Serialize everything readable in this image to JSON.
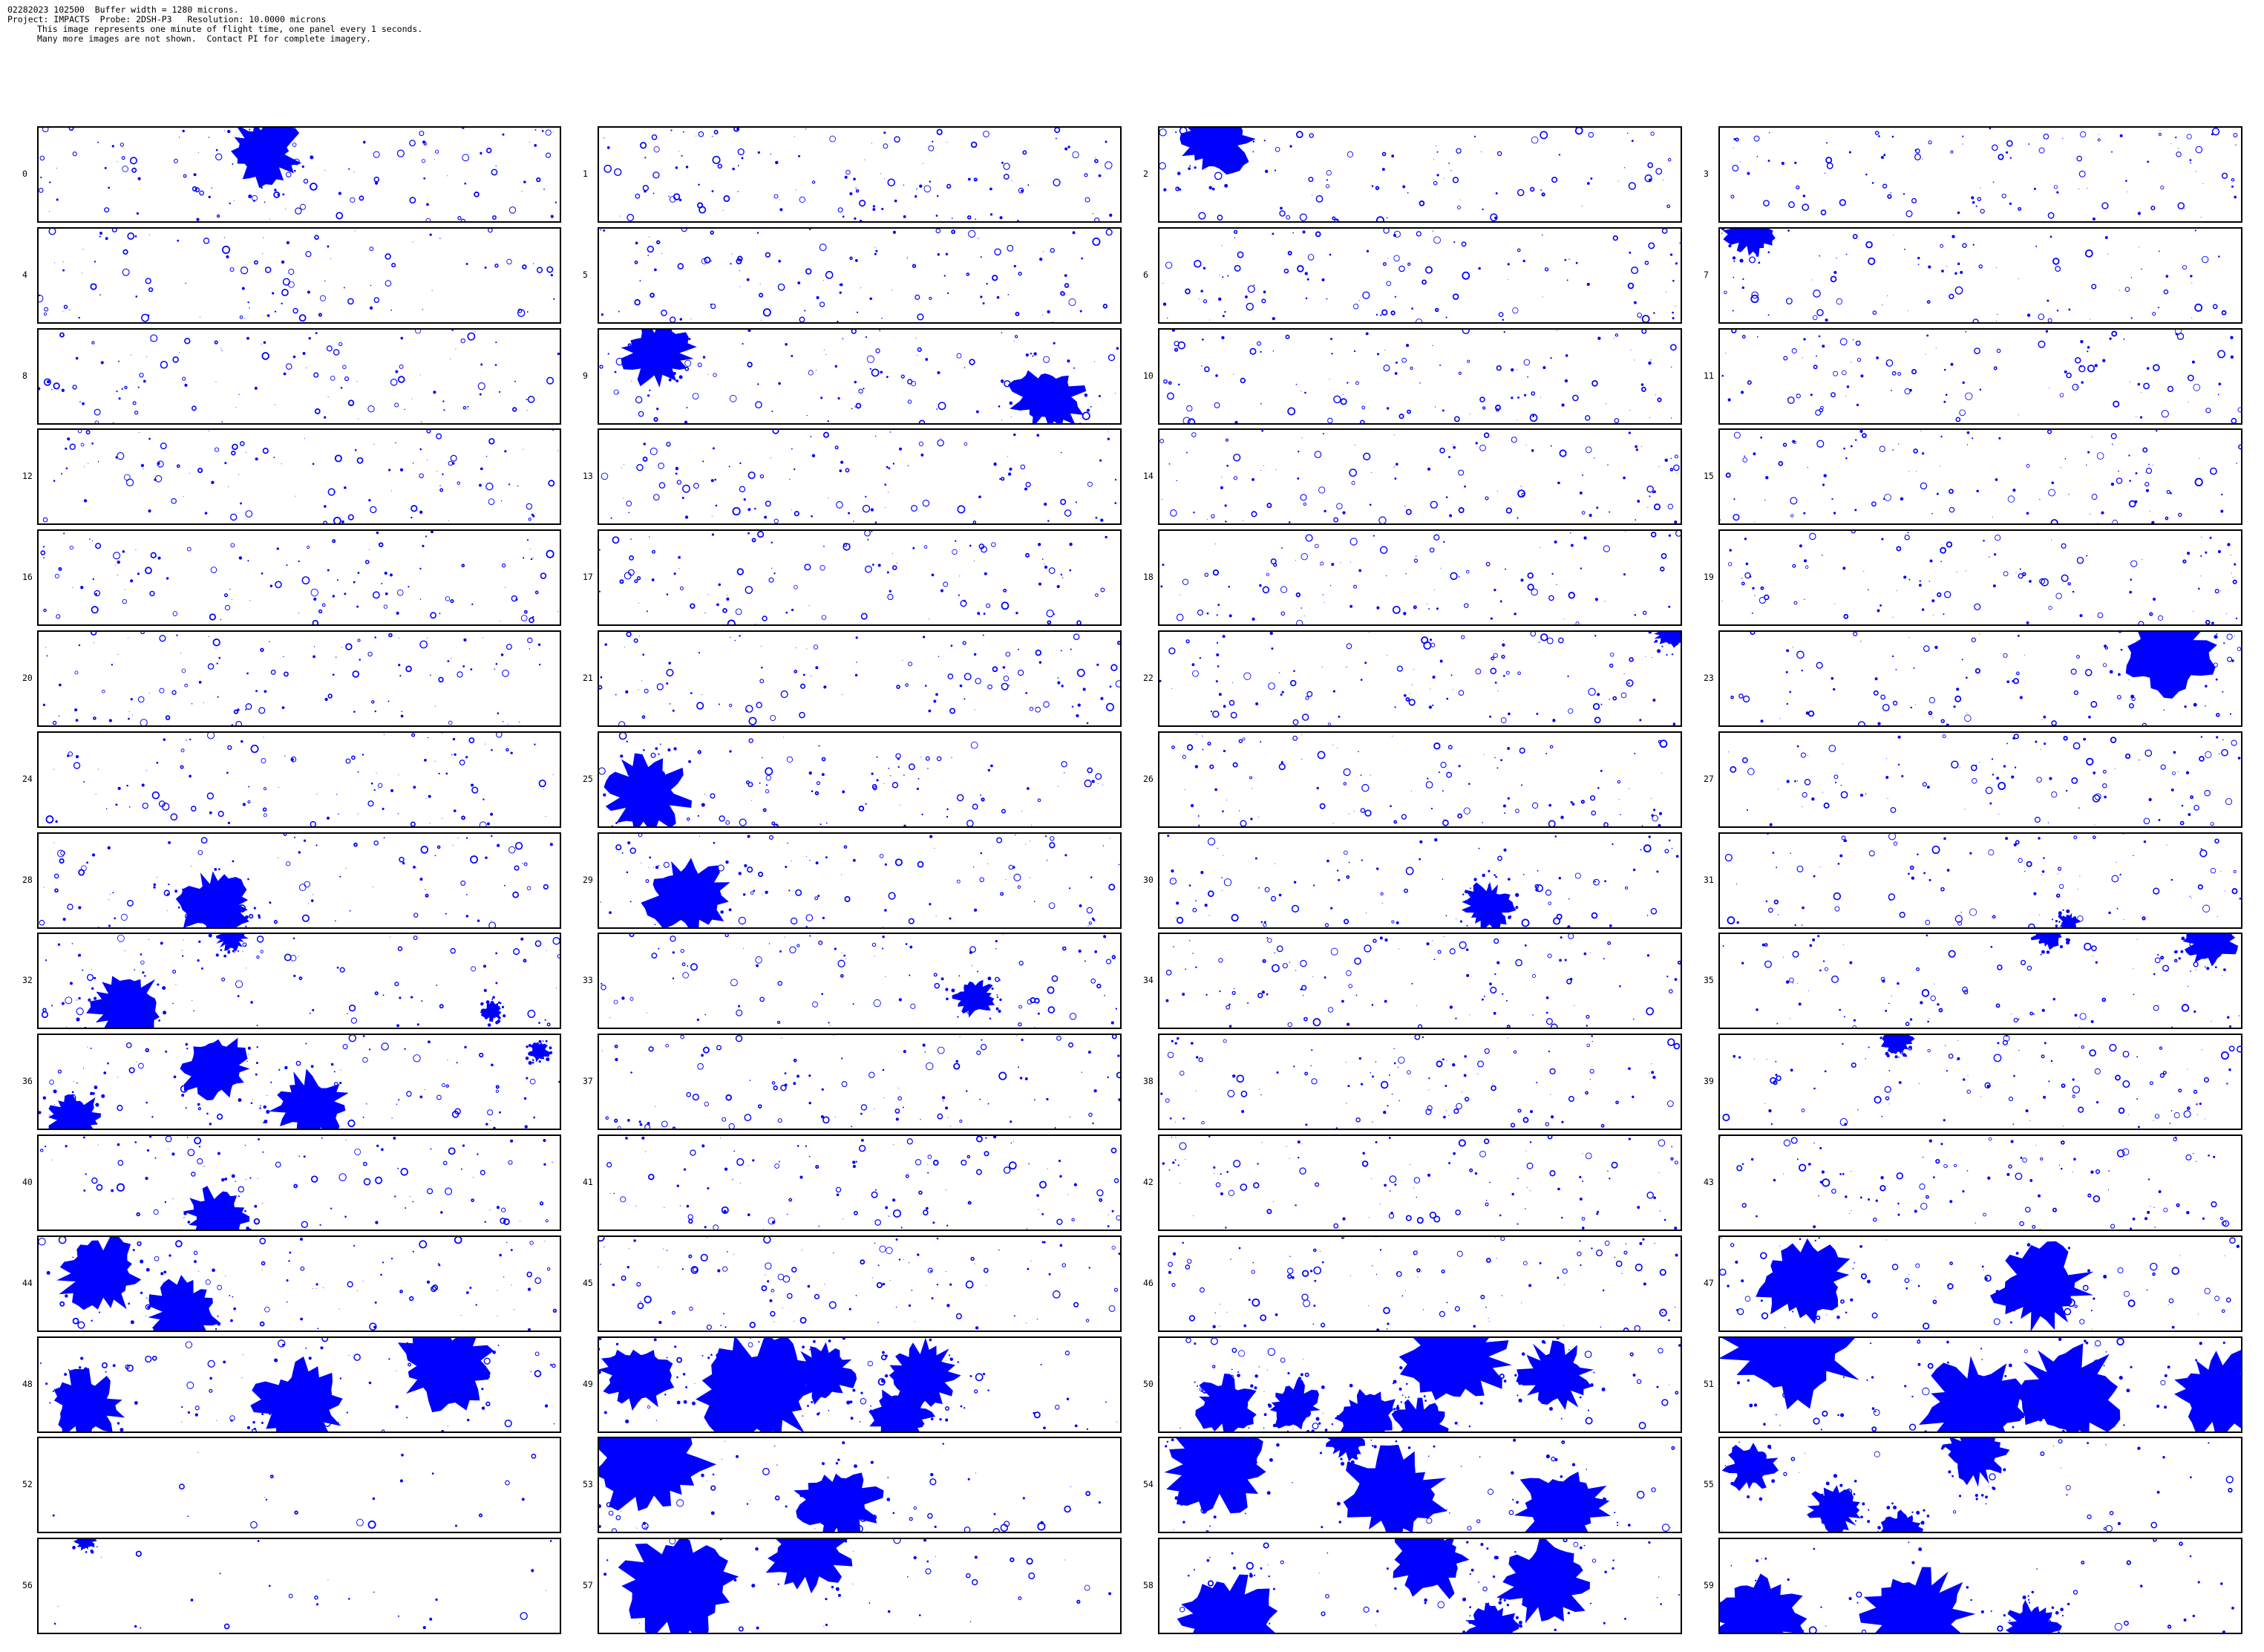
{
  "header": {
    "line1": "02282023 102500  Buffer width = 1280 microns.",
    "line2": "Project: IMPACTS  Probe: 2DSH-P3   Resolution: 10.0000 microns",
    "line3": "This image represents one minute of flight time, one panel every 1 seconds.",
    "line4": "Many more images are not shown.  Contact PI for complete imagery."
  },
  "colors": {
    "particle": "#0000ff",
    "border": "#000000",
    "background": "#ffffff"
  },
  "panels": [
    {
      "label": "0",
      "small": 110,
      "blobs": [
        [
          0.43,
          0.25,
          0.07
        ]
      ]
    },
    {
      "label": "1",
      "small": 130,
      "blobs": []
    },
    {
      "label": "2",
      "small": 90,
      "blobs": [
        [
          0.11,
          0.12,
          0.07
        ]
      ]
    },
    {
      "label": "3",
      "small": 110,
      "blobs": []
    },
    {
      "label": "4",
      "small": 100,
      "blobs": []
    },
    {
      "label": "5",
      "small": 110,
      "blobs": []
    },
    {
      "label": "6",
      "small": 110,
      "blobs": []
    },
    {
      "label": "7",
      "small": 90,
      "blobs": [
        [
          0.06,
          0.02,
          0.05
        ]
      ]
    },
    {
      "label": "8",
      "small": 110,
      "blobs": []
    },
    {
      "label": "9",
      "small": 100,
      "blobs": [
        [
          0.11,
          0.25,
          0.07
        ],
        [
          0.86,
          0.72,
          0.07
        ]
      ]
    },
    {
      "label": "10",
      "small": 110,
      "blobs": []
    },
    {
      "label": "11",
      "small": 110,
      "blobs": []
    },
    {
      "label": "12",
      "small": 110,
      "blobs": []
    },
    {
      "label": "13",
      "small": 110,
      "blobs": []
    },
    {
      "label": "14",
      "small": 110,
      "blobs": []
    },
    {
      "label": "15",
      "small": 110,
      "blobs": []
    },
    {
      "label": "16",
      "small": 110,
      "blobs": []
    },
    {
      "label": "17",
      "small": 110,
      "blobs": []
    },
    {
      "label": "18",
      "small": 100,
      "blobs": []
    },
    {
      "label": "19",
      "small": 110,
      "blobs": []
    },
    {
      "label": "20",
      "small": 110,
      "blobs": []
    },
    {
      "label": "21",
      "small": 110,
      "blobs": []
    },
    {
      "label": "22",
      "small": 110,
      "blobs": [
        [
          0.98,
          0.02,
          0.03
        ]
      ]
    },
    {
      "label": "23",
      "small": 100,
      "blobs": [
        [
          0.86,
          0.22,
          0.09
        ]
      ]
    },
    {
      "label": "24",
      "small": 110,
      "blobs": []
    },
    {
      "label": "25",
      "small": 100,
      "blobs": [
        [
          0.09,
          0.65,
          0.08
        ]
      ]
    },
    {
      "label": "26",
      "small": 110,
      "blobs": []
    },
    {
      "label": "27",
      "small": 110,
      "blobs": []
    },
    {
      "label": "28",
      "small": 100,
      "blobs": [
        [
          0.34,
          0.76,
          0.07
        ]
      ]
    },
    {
      "label": "29",
      "small": 100,
      "blobs": [
        [
          0.17,
          0.66,
          0.08
        ]
      ]
    },
    {
      "label": "30",
      "small": 100,
      "blobs": [
        [
          0.63,
          0.77,
          0.05
        ]
      ]
    },
    {
      "label": "31",
      "small": 100,
      "blobs": [
        [
          0.67,
          0.96,
          0.02
        ]
      ]
    },
    {
      "label": "32",
      "small": 100,
      "blobs": [
        [
          0.17,
          0.78,
          0.07
        ],
        [
          0.37,
          0.02,
          0.03
        ],
        [
          0.87,
          0.83,
          0.02
        ]
      ]
    },
    {
      "label": "33",
      "small": 100,
      "blobs": [
        [
          0.72,
          0.69,
          0.04
        ]
      ]
    },
    {
      "label": "34",
      "small": 110,
      "blobs": []
    },
    {
      "label": "35",
      "small": 100,
      "blobs": [
        [
          0.94,
          0.08,
          0.05
        ],
        [
          0.63,
          0.01,
          0.03
        ]
      ]
    },
    {
      "label": "36",
      "small": 90,
      "blobs": [
        [
          0.34,
          0.36,
          0.07
        ],
        [
          0.52,
          0.75,
          0.07
        ],
        [
          0.07,
          0.88,
          0.05
        ],
        [
          0.96,
          0.18,
          0.02
        ]
      ]
    },
    {
      "label": "37",
      "small": 110,
      "blobs": []
    },
    {
      "label": "38",
      "small": 110,
      "blobs": []
    },
    {
      "label": "39",
      "small": 110,
      "blobs": [
        [
          0.34,
          0.07,
          0.03
        ]
      ]
    },
    {
      "label": "40",
      "small": 100,
      "blobs": [
        [
          0.34,
          0.86,
          0.06
        ]
      ]
    },
    {
      "label": "41",
      "small": 110,
      "blobs": []
    },
    {
      "label": "42",
      "small": 110,
      "blobs": []
    },
    {
      "label": "43",
      "small": 110,
      "blobs": []
    },
    {
      "label": "44",
      "small": 90,
      "blobs": [
        [
          0.12,
          0.39,
          0.08
        ],
        [
          0.28,
          0.8,
          0.07
        ]
      ]
    },
    {
      "label": "45",
      "small": 110,
      "blobs": []
    },
    {
      "label": "46",
      "small": 110,
      "blobs": []
    },
    {
      "label": "47",
      "small": 90,
      "blobs": [
        [
          0.16,
          0.48,
          0.09
        ],
        [
          0.62,
          0.54,
          0.09
        ]
      ]
    },
    {
      "label": "48",
      "small": 60,
      "blobs": [
        [
          0.09,
          0.72,
          0.07
        ],
        [
          0.5,
          0.72,
          0.09
        ],
        [
          0.78,
          0.3,
          0.09
        ]
      ]
    },
    {
      "label": "49",
      "small": 60,
      "blobs": [
        [
          0.07,
          0.4,
          0.07
        ],
        [
          0.31,
          0.55,
          0.11
        ],
        [
          0.43,
          0.38,
          0.06
        ],
        [
          0.62,
          0.4,
          0.07
        ],
        [
          0.58,
          0.84,
          0.06
        ]
      ]
    },
    {
      "label": "50",
      "small": 60,
      "blobs": [
        [
          0.57,
          0.2,
          0.1
        ],
        [
          0.76,
          0.4,
          0.07
        ],
        [
          0.13,
          0.72,
          0.06
        ],
        [
          0.26,
          0.73,
          0.05
        ],
        [
          0.4,
          0.86,
          0.06
        ],
        [
          0.5,
          0.92,
          0.05
        ]
      ]
    },
    {
      "label": "51",
      "small": 60,
      "blobs": [
        [
          0.14,
          0.1,
          0.13
        ],
        [
          0.49,
          0.74,
          0.1
        ],
        [
          0.67,
          0.6,
          0.1
        ],
        [
          0.96,
          0.6,
          0.09
        ]
      ]
    },
    {
      "label": "52",
      "small": 20,
      "blobs": []
    },
    {
      "label": "53",
      "small": 60,
      "blobs": [
        [
          0.1,
          0.28,
          0.11
        ],
        [
          0.46,
          0.71,
          0.08
        ]
      ]
    },
    {
      "label": "54",
      "small": 40,
      "blobs": [
        [
          0.11,
          0.28,
          0.1
        ],
        [
          0.45,
          0.6,
          0.1
        ],
        [
          0.77,
          0.75,
          0.09
        ],
        [
          0.36,
          0.02,
          0.04
        ]
      ]
    },
    {
      "label": "55",
      "small": 40,
      "blobs": [
        [
          0.06,
          0.3,
          0.05
        ],
        [
          0.22,
          0.77,
          0.05
        ],
        [
          0.49,
          0.18,
          0.06
        ],
        [
          0.35,
          0.97,
          0.04
        ]
      ]
    },
    {
      "label": "56",
      "small": 25,
      "blobs": [
        [
          0.09,
          0.02,
          0.02
        ]
      ]
    },
    {
      "label": "57",
      "small": 40,
      "blobs": [
        [
          0.15,
          0.5,
          0.12
        ],
        [
          0.4,
          0.14,
          0.08
        ]
      ]
    },
    {
      "label": "58",
      "small": 40,
      "blobs": [
        [
          0.13,
          0.85,
          0.09
        ],
        [
          0.52,
          0.22,
          0.08
        ],
        [
          0.74,
          0.46,
          0.09
        ],
        [
          0.64,
          0.96,
          0.05
        ]
      ]
    },
    {
      "label": "59",
      "small": 40,
      "blobs": [
        [
          0.07,
          0.85,
          0.09
        ],
        [
          0.38,
          0.8,
          0.1
        ],
        [
          0.6,
          0.93,
          0.05
        ]
      ]
    }
  ]
}
